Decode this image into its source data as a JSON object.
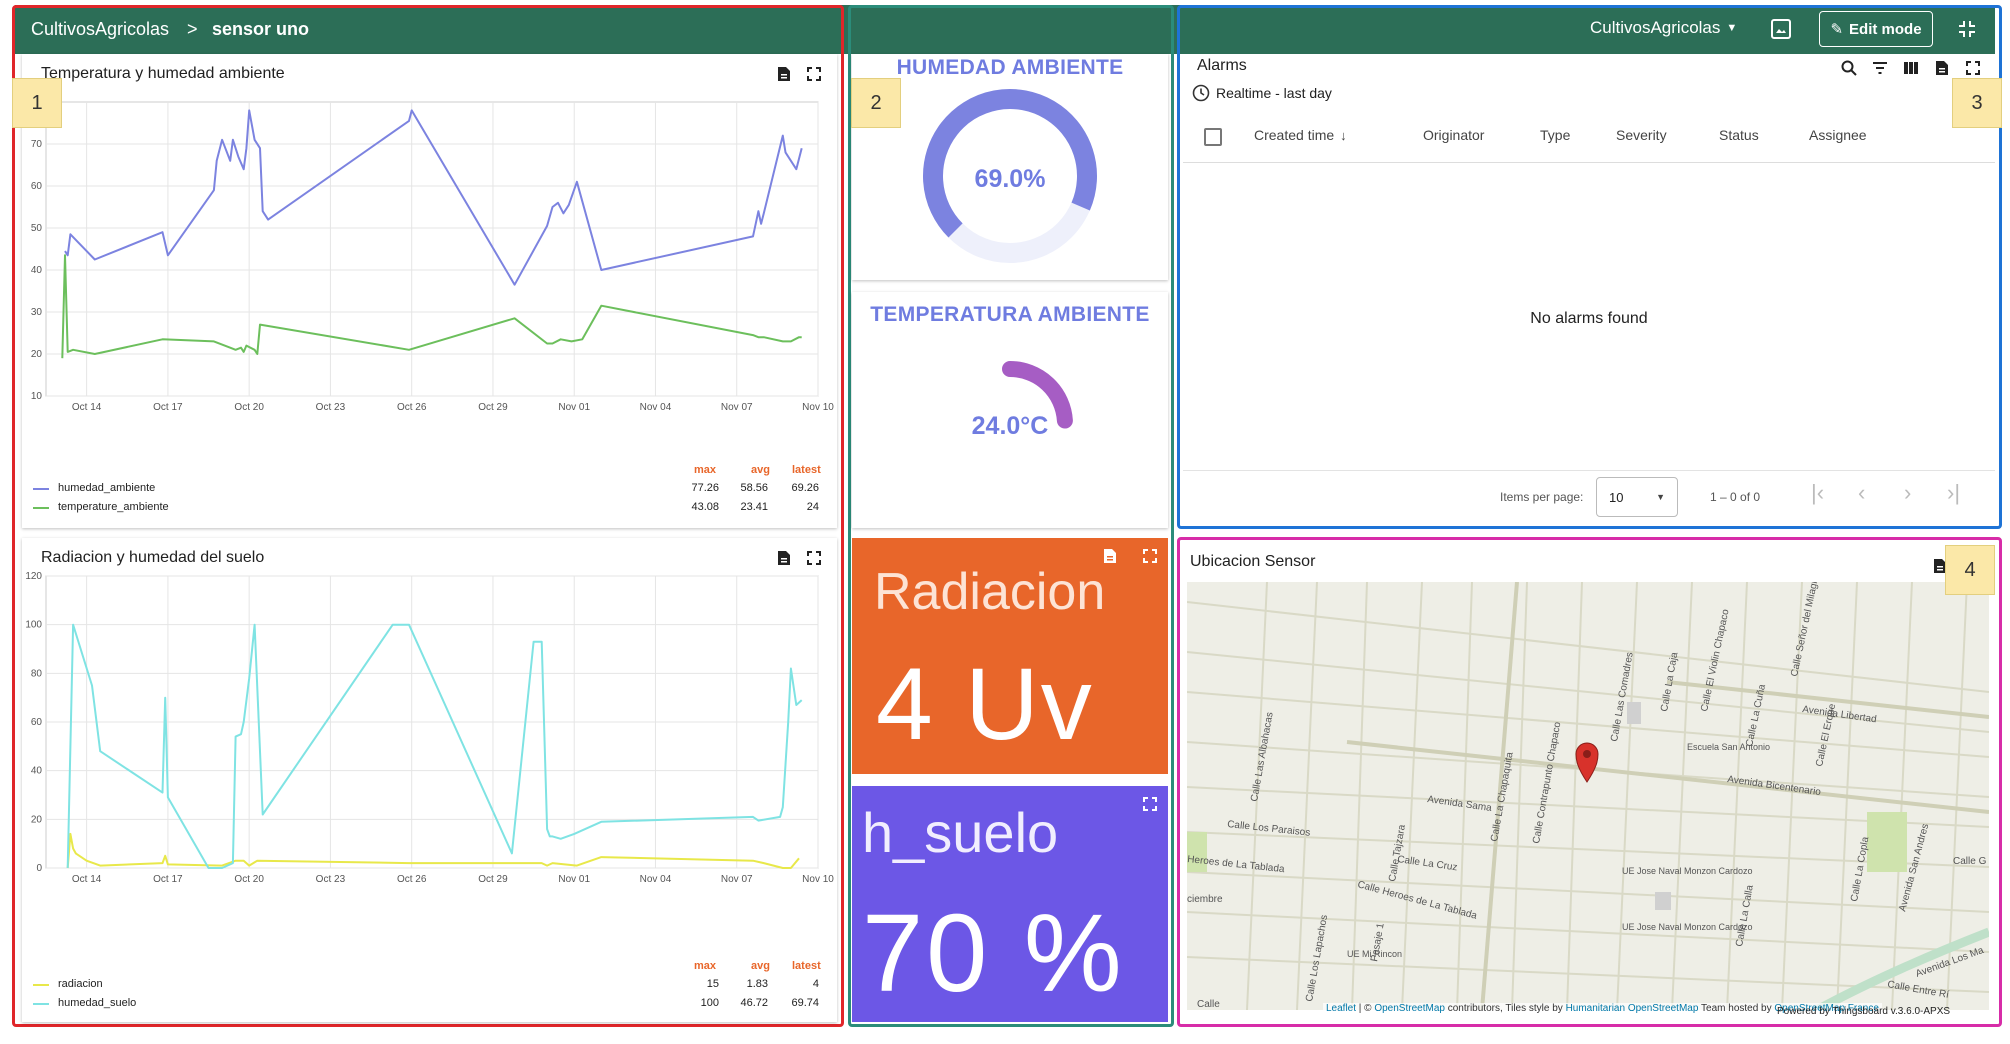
{
  "header": {
    "breadcrumb_root": "CultivosAgricolas",
    "breadcrumb_sep": ">",
    "breadcrumb_current": "sensor uno",
    "state_selector": "CultivosAgricolas",
    "edit_mode": "Edit mode"
  },
  "markers": {
    "m1": "1",
    "m2": "2",
    "m3": "3",
    "m4": "4"
  },
  "chart1": {
    "title": "Temperatura y humedad ambiente",
    "legend_headers": {
      "max": "max",
      "avg": "avg",
      "latest": "latest"
    },
    "legend": [
      {
        "name": "humedad_ambiente",
        "max": "77.26",
        "avg": "58.56",
        "latest": "69.26",
        "color": "#7c83e0"
      },
      {
        "name": "temperature_ambiente",
        "max": "43.08",
        "avg": "23.41",
        "latest": "24",
        "color": "#6cbf5c"
      }
    ]
  },
  "chart2": {
    "title": "Radiacion y humedad del suelo",
    "legend_headers": {
      "max": "max",
      "avg": "avg",
      "latest": "latest"
    },
    "legend": [
      {
        "name": "radiacion",
        "max": "15",
        "avg": "1.83",
        "latest": "4",
        "color": "#e8e84a"
      },
      {
        "name": "humedad_suelo",
        "max": "100",
        "avg": "46.72",
        "latest": "69.74",
        "color": "#7fe3e3"
      }
    ]
  },
  "chart_data": [
    {
      "type": "line",
      "title": "Temperatura y humedad ambiente",
      "x_ticks": [
        "Oct 14",
        "Oct 17",
        "Oct 20",
        "Oct 23",
        "Oct 26",
        "Oct 29",
        "Nov 01",
        "Nov 04",
        "Nov 07",
        "Nov 10"
      ],
      "y_ticks": [
        10,
        20,
        30,
        40,
        50,
        60,
        70
      ],
      "ylim": [
        10,
        80
      ],
      "xlim": [
        12.5,
        41.0
      ],
      "grid": true,
      "legend_placement": "bottom-left",
      "series": [
        {
          "name": "humedad_ambiente",
          "color": "#7c83e0",
          "x": [
            13.2,
            13.3,
            13.4,
            14.3,
            16.8,
            17.0,
            18.7,
            18.8,
            19.0,
            19.3,
            19.4,
            19.6,
            19.8,
            19.9,
            20.0,
            20.2,
            20.4,
            20.5,
            20.7,
            25.9,
            26.0,
            29.8,
            31.0,
            31.2,
            31.4,
            31.6,
            31.8,
            32.1,
            33.0,
            38.6,
            38.8,
            38.9,
            39.0,
            39.7,
            39.8,
            40.0,
            40.2,
            40.4
          ],
          "y": [
            44.5,
            43.5,
            48.5,
            42.5,
            49,
            43.5,
            59,
            66,
            71,
            66,
            71,
            67,
            64,
            69,
            78,
            71,
            69,
            54,
            52,
            75.5,
            78,
            36.5,
            50.5,
            55,
            56,
            53.5,
            55.5,
            61,
            40,
            48,
            54,
            51,
            53.5,
            72,
            68,
            66,
            64,
            69
          ]
        },
        {
          "name": "temperature_ambiente",
          "color": "#6cbf5c",
          "x": [
            13.1,
            13.2,
            13.3,
            13.5,
            14.3,
            16.8,
            18.7,
            19.3,
            19.5,
            19.7,
            19.8,
            19.9,
            20.2,
            20.3,
            20.4,
            25.9,
            29.8,
            31.0,
            31.2,
            31.5,
            31.9,
            32.3,
            33.0,
            38.6,
            38.8,
            39.0,
            39.7,
            40.0,
            40.3,
            40.4
          ],
          "y": [
            19,
            43.5,
            20.5,
            21,
            20,
            23.5,
            23,
            21.5,
            21,
            21.5,
            20.5,
            22,
            21,
            20,
            27,
            21,
            28.5,
            22.5,
            22.5,
            23.5,
            23,
            23.5,
            31.5,
            24.5,
            24,
            24,
            23,
            23,
            24,
            24
          ]
        }
      ]
    },
    {
      "type": "line",
      "title": "Radiacion y humedad del suelo",
      "x_ticks": [
        "Oct 14",
        "Oct 17",
        "Oct 20",
        "Oct 23",
        "Oct 26",
        "Oct 29",
        "Nov 01",
        "Nov 04",
        "Nov 07",
        "Nov 10"
      ],
      "y_ticks": [
        0,
        20,
        40,
        60,
        80,
        100,
        120
      ],
      "ylim": [
        0,
        120
      ],
      "xlim": [
        12.5,
        41.0
      ],
      "grid": true,
      "legend_placement": "bottom-left",
      "series": [
        {
          "name": "radiacion",
          "color": "#e8e84a",
          "x": [
            13.3,
            13.4,
            13.5,
            13.6,
            14.0,
            14.5,
            16.8,
            16.9,
            17.0,
            19.0,
            19.5,
            19.6,
            19.8,
            20.0,
            20.3,
            25.9,
            29.7,
            30.8,
            31.0,
            31.2,
            32.1,
            33.0,
            38.6,
            39.0,
            39.7,
            40.0,
            40.3
          ],
          "y": [
            0,
            14,
            8,
            6,
            3,
            1,
            2,
            5,
            1.5,
            1,
            3,
            3,
            3,
            1,
            3,
            2,
            2,
            2,
            1,
            2,
            1,
            4.5,
            3,
            2,
            0,
            0,
            4
          ]
        },
        {
          "name": "humedad_suelo",
          "color": "#7fe3e3",
          "x": [
            13.3,
            13.5,
            14.2,
            14.5,
            16.8,
            16.9,
            17.0,
            18.5,
            19.0,
            19.4,
            19.5,
            19.7,
            19.8,
            20.0,
            20.2,
            20.5,
            25.3,
            25.9,
            29.7,
            30.5,
            30.8,
            31.0,
            31.1,
            31.2,
            31.5,
            32.0,
            33.0,
            38.6,
            38.8,
            39.6,
            39.7,
            39.9,
            40.0,
            40.2,
            40.4
          ],
          "y": [
            0,
            100,
            75,
            48,
            31,
            70,
            29,
            0,
            0,
            2,
            54,
            55,
            60,
            78,
            100,
            22,
            100,
            100,
            6,
            93,
            93,
            16,
            13,
            13,
            12,
            14,
            19,
            21,
            19.5,
            21,
            25,
            60,
            82,
            67,
            69
          ]
        }
      ]
    }
  ],
  "gauges": {
    "humidity": {
      "title": "HUMEDAD AMBIENTE",
      "value_label": "69.0%",
      "fraction": 0.69,
      "color": "#7c83e0"
    },
    "temperature": {
      "title": "TEMPERATURA AMBIENTE",
      "value_label": "24.0°C",
      "fraction": 0.24,
      "color": "#a65dc4"
    }
  },
  "cards": {
    "radiacion": {
      "title": "Radiacion",
      "value": "4 Uv",
      "color": "#e8662a"
    },
    "h_suelo": {
      "title": "h_suelo",
      "value": "70 %",
      "color": "#6c57e6"
    }
  },
  "alarms": {
    "title": "Alarms",
    "timewindow": "Realtime - last day",
    "columns": [
      "Created time",
      "Originator",
      "Type",
      "Severity",
      "Status",
      "Assignee"
    ],
    "empty": "No alarms found",
    "items_per_page_label": "Items per page:",
    "items_per_page": "10",
    "range": "1 – 0 of 0"
  },
  "map": {
    "title": "Ubicacion Sensor",
    "attribution": {
      "leaflet": "Leaflet",
      "sep1": " | © ",
      "osm": "OpenStreetMap",
      "contrib": " contributors, Tiles style by ",
      "hot": "Humanitarian OpenStreetMap",
      "team": " Team hosted by ",
      "osm_france": "OpenStreetMap France"
    },
    "powered": "Powered by Thingsboard v.3.6.0-APXS",
    "streets": [
      {
        "name": "Avenida Libertad"
      },
      {
        "name": "Avenida Bicentenario"
      },
      {
        "name": "Avenida Sama"
      },
      {
        "name": "Calle Los Paraisos"
      },
      {
        "name": "Heroes de La Tablada"
      },
      {
        "name": "Calle La Cruz"
      },
      {
        "name": "Calle Heroes de La Tablada"
      },
      {
        "name": "Calle Las Comadres"
      },
      {
        "name": "Calle La Caja"
      },
      {
        "name": "Calle El Violin Chapaco"
      },
      {
        "name": "Calle Señor del Milagro"
      },
      {
        "name": "Calle El Erque"
      },
      {
        "name": "Calle La Cuña"
      },
      {
        "name": "Calle Las Albahacas"
      },
      {
        "name": "Calle La Chapaquita"
      },
      {
        "name": "Calle Contrapunto Chapaco"
      },
      {
        "name": "Calle Tajzara"
      },
      {
        "name": "Calle La Copla"
      },
      {
        "name": "Avenida San Andres"
      },
      {
        "name": "Calle La Calla"
      },
      {
        "name": "Calle Los Lapachos"
      },
      {
        "name": "Pasaje 1"
      },
      {
        "name": "Avenida Los Ma"
      },
      {
        "name": "Calle Entre Rí"
      },
      {
        "name": "Calle G"
      },
      {
        "name": "ciembre"
      },
      {
        "name": "Calle"
      }
    ],
    "places": [
      {
        "name": "Escuela San Antonio"
      },
      {
        "name": "UE Jose Naval Monzon Cardozo"
      },
      {
        "name": "UE Jose Naval Monzon Cardozo"
      },
      {
        "name": "UE Mi Rincon"
      }
    ]
  }
}
